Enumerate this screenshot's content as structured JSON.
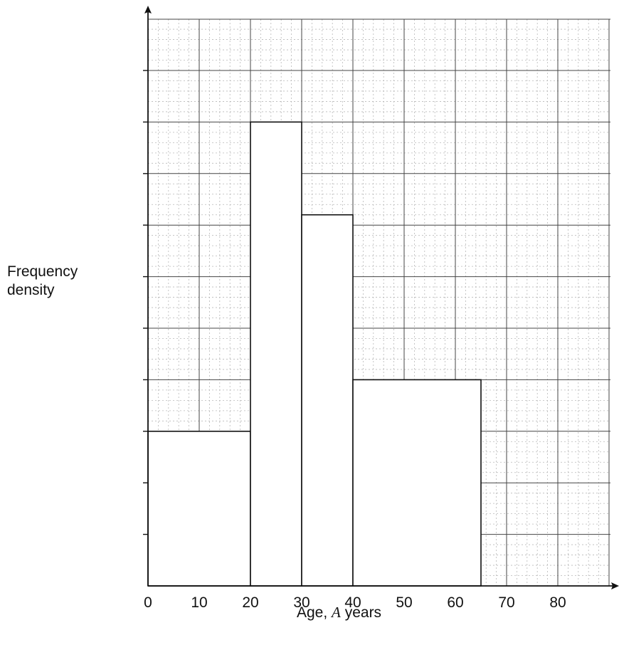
{
  "chart_data": {
    "type": "histogram",
    "ylabel_lines": [
      "Frequency",
      "density"
    ],
    "xlabel": {
      "prefix": "Age, ",
      "variable": "A",
      "suffix": " years"
    },
    "x_ticks": [
      "0",
      "10",
      "20",
      "30",
      "40",
      "50",
      "60",
      "70",
      "80"
    ],
    "xlim": [
      0,
      90
    ],
    "ylim": [
      0,
      11
    ],
    "y_ticks_labelled": false,
    "grid": true,
    "bars": [
      {
        "x0": 0,
        "x1": 20,
        "y": 3
      },
      {
        "x0": 20,
        "x1": 30,
        "y": 9
      },
      {
        "x0": 30,
        "x1": 40,
        "y": 7.2
      },
      {
        "x0": 40,
        "x1": 65,
        "y": 4
      }
    ]
  }
}
